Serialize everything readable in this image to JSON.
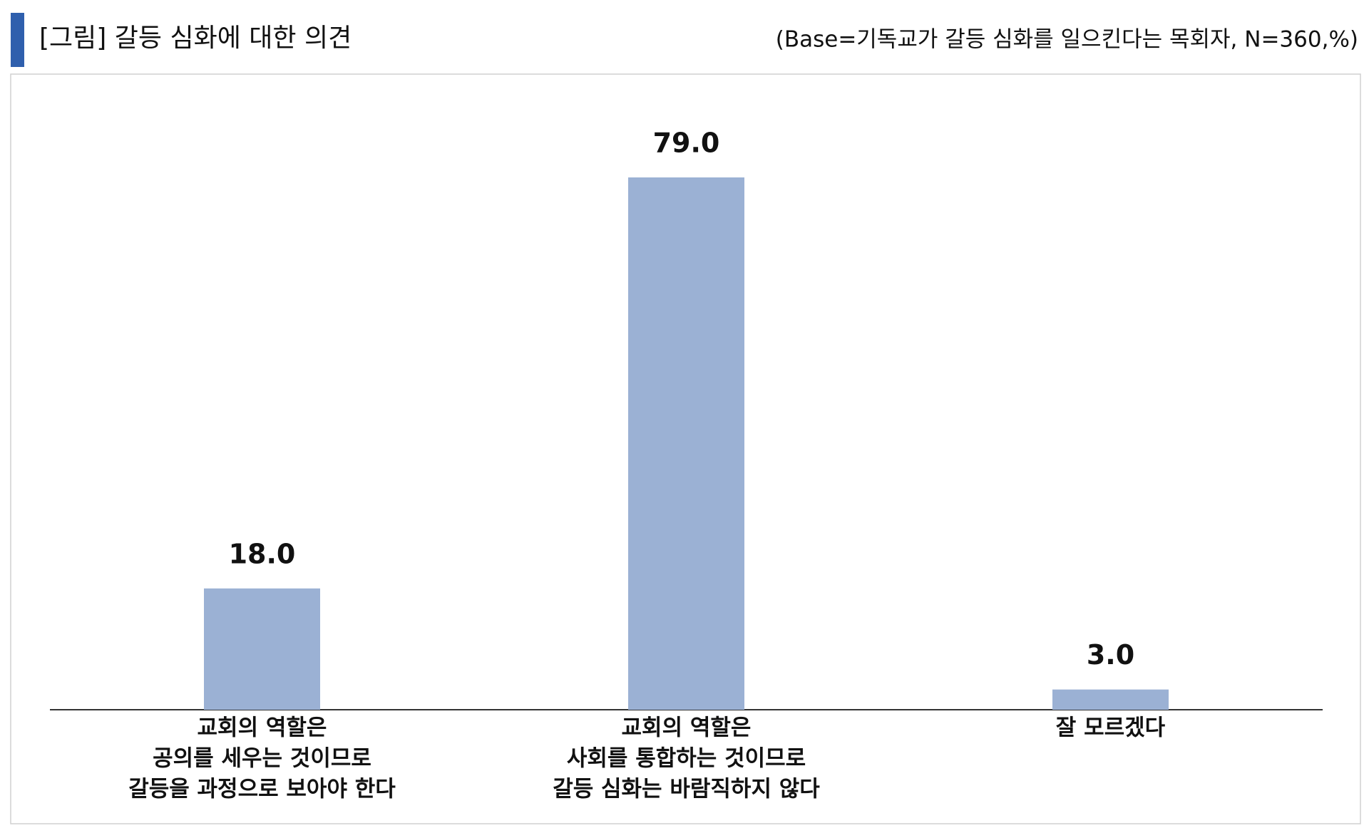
{
  "chart_data": {
    "type": "bar",
    "title": "[그림] 갈등 심화에 대한 의견",
    "subtitle": "(Base=기독교가 갈등 심화를 일으킨다는 목회자, N=360,%)",
    "categories": [
      [
        "교회의 역할은",
        "공의를 세우는 것이므로",
        "갈등을 과정으로 보아야 한다"
      ],
      [
        "교회의 역할은",
        "사회를 통합하는 것이므로",
        "갈등 심화는 바람직하지 않다"
      ],
      [
        "잘 모르겠다"
      ]
    ],
    "values": [
      18.0,
      79.0,
      3.0
    ],
    "value_labels": [
      "18.0",
      "79.0",
      "3.0"
    ],
    "color": "#9bb1d4"
  }
}
